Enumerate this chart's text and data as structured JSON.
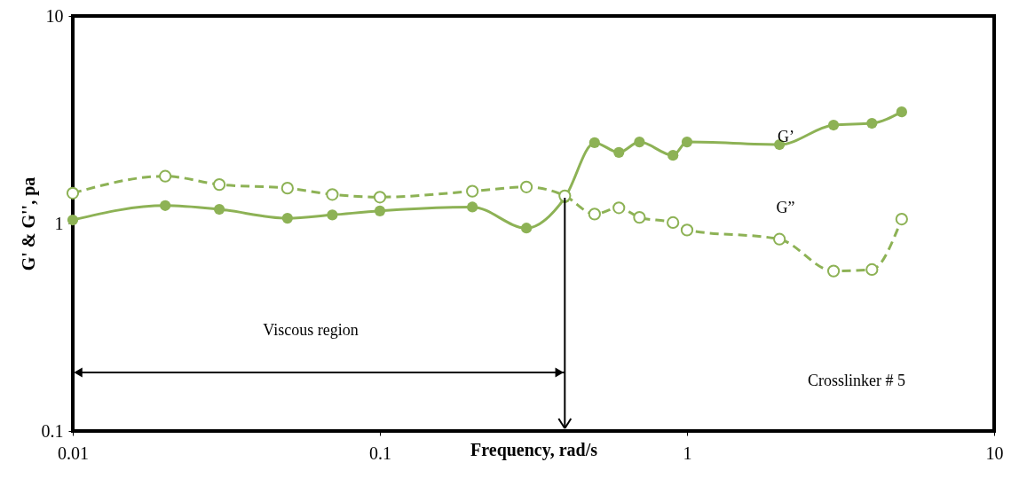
{
  "chart_data": {
    "type": "line",
    "xlabel": "Frequency, rad/s",
    "ylabel": "G' & G'', pa",
    "log": "xy",
    "xlim": [
      0.01,
      10
    ],
    "ylim": [
      0.1,
      10
    ],
    "xticks": [
      0.01,
      0.1,
      1,
      10
    ],
    "yticks": [
      0.1,
      1,
      10
    ],
    "grid": false,
    "marker": "circle",
    "series": [
      {
        "color": "#8db255",
        "line_style": "solid",
        "x": [
          0.01,
          0.02,
          0.03,
          0.05,
          0.07,
          0.1,
          0.2,
          0.3,
          0.4,
          0.5,
          0.6,
          0.7,
          0.9,
          1,
          2,
          3,
          4,
          5
        ],
        "values": [
          1.04,
          1.22,
          1.17,
          1.06,
          1.1,
          1.15,
          1.2,
          0.95,
          1.33,
          2.45,
          2.2,
          2.47,
          2.13,
          2.47,
          2.4,
          2.98,
          3.04,
          3.45
        ]
      },
      {
        "color": "#8db255",
        "line_style": "dashed",
        "x": [
          0.01,
          0.02,
          0.03,
          0.05,
          0.07,
          0.1,
          0.2,
          0.3,
          0.4,
          0.5,
          0.6,
          0.7,
          0.9,
          1,
          2,
          3,
          4,
          5
        ],
        "values": [
          1.4,
          1.69,
          1.54,
          1.48,
          1.38,
          1.34,
          1.43,
          1.5,
          1.36,
          1.11,
          1.19,
          1.07,
          1.01,
          0.93,
          0.84,
          0.59,
          0.6,
          1.05
        ]
      }
    ],
    "annotations": [
      {
        "text": "G’",
        "x": 2.1,
        "y": 2.6
      },
      "G”",
      "Viscous region",
      "Crosslinker # 5"
    ],
    "ref_lines": [
      {
        "axis": "x",
        "value": 0.4
      }
    ]
  }
}
